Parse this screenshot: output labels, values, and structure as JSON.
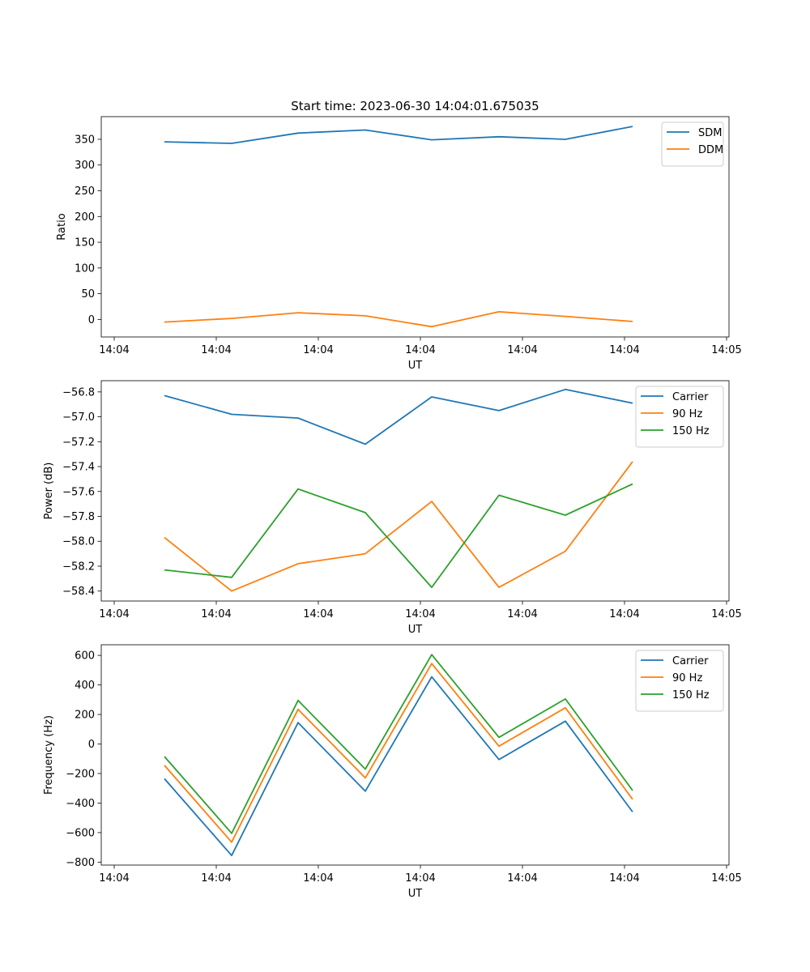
{
  "figure_title": "Start time: 2023-06-30 14:04:01.675035",
  "colors": {
    "blue": "#1f77b4",
    "orange": "#ff7f0e",
    "green": "#2ca02c"
  },
  "chart_data": [
    {
      "type": "line",
      "title": "Start time: 2023-06-30 14:04:01.675035",
      "xlabel": "UT",
      "ylabel": "Ratio",
      "x_tick_labels": [
        "14:04",
        "14:04",
        "14:04",
        "14:04",
        "14:04",
        "14:04",
        "14:05"
      ],
      "y_ticks": [
        0,
        50,
        100,
        150,
        200,
        250,
        300,
        350
      ],
      "y_tick_labels": [
        "0",
        "50",
        "100",
        "150",
        "200",
        "250",
        "300",
        "350"
      ],
      "ylim": [
        -34,
        394
      ],
      "legend_position": "upper right",
      "series": [
        {
          "name": "SDM",
          "color": "#1f77b4",
          "values": [
            345,
            342,
            362,
            368,
            349,
            355,
            350,
            375
          ]
        },
        {
          "name": "DDM",
          "color": "#ff7f0e",
          "values": [
            -5,
            2,
            13,
            7,
            -14,
            15,
            6,
            -4
          ]
        }
      ]
    },
    {
      "type": "line",
      "xlabel": "UT",
      "ylabel": "Power (dB)",
      "x_tick_labels": [
        "14:04",
        "14:04",
        "14:04",
        "14:04",
        "14:04",
        "14:04",
        "14:05"
      ],
      "y_ticks": [
        -58.4,
        -58.2,
        -58.0,
        -57.8,
        -57.6,
        -57.4,
        -57.2,
        -57.0,
        -56.8
      ],
      "y_tick_labels": [
        "−58.4",
        "−58.2",
        "−58.0",
        "−57.8",
        "−57.6",
        "−57.4",
        "−57.2",
        "−57.0",
        "−56.8"
      ],
      "ylim": [
        -58.48,
        -56.71
      ],
      "legend_position": "upper right",
      "series": [
        {
          "name": "Carrier",
          "color": "#1f77b4",
          "values": [
            -56.83,
            -56.98,
            -57.01,
            -57.22,
            -56.84,
            -56.95,
            -56.78,
            -56.89
          ]
        },
        {
          "name": "90 Hz",
          "color": "#ff7f0e",
          "values": [
            -57.97,
            -58.4,
            -58.18,
            -58.1,
            -57.68,
            -58.37,
            -58.08,
            -57.36
          ]
        },
        {
          "name": "150 Hz",
          "color": "#2ca02c",
          "values": [
            -58.23,
            -58.29,
            -57.58,
            -57.77,
            -58.37,
            -57.63,
            -57.79,
            -57.54
          ]
        }
      ]
    },
    {
      "type": "line",
      "xlabel": "UT",
      "ylabel": "Frequency (Hz)",
      "x_tick_labels": [
        "14:04",
        "14:04",
        "14:04",
        "14:04",
        "14:04",
        "14:04",
        "14:05"
      ],
      "y_ticks": [
        -800,
        -600,
        -400,
        -200,
        0,
        200,
        400,
        600
      ],
      "y_tick_labels": [
        "−800",
        "−600",
        "−400",
        "−200",
        "0",
        "200",
        "400",
        "600"
      ],
      "ylim": [
        -820,
        672
      ],
      "legend_position": "upper right",
      "series": [
        {
          "name": "Carrier",
          "color": "#1f77b4",
          "values": [
            -235,
            -755,
            145,
            -320,
            455,
            -105,
            155,
            -460
          ]
        },
        {
          "name": "90 Hz",
          "color": "#ff7f0e",
          "values": [
            -145,
            -665,
            235,
            -230,
            545,
            -15,
            245,
            -375
          ]
        },
        {
          "name": "150 Hz",
          "color": "#2ca02c",
          "values": [
            -85,
            -605,
            295,
            -170,
            605,
            45,
            305,
            -315
          ]
        }
      ]
    }
  ]
}
